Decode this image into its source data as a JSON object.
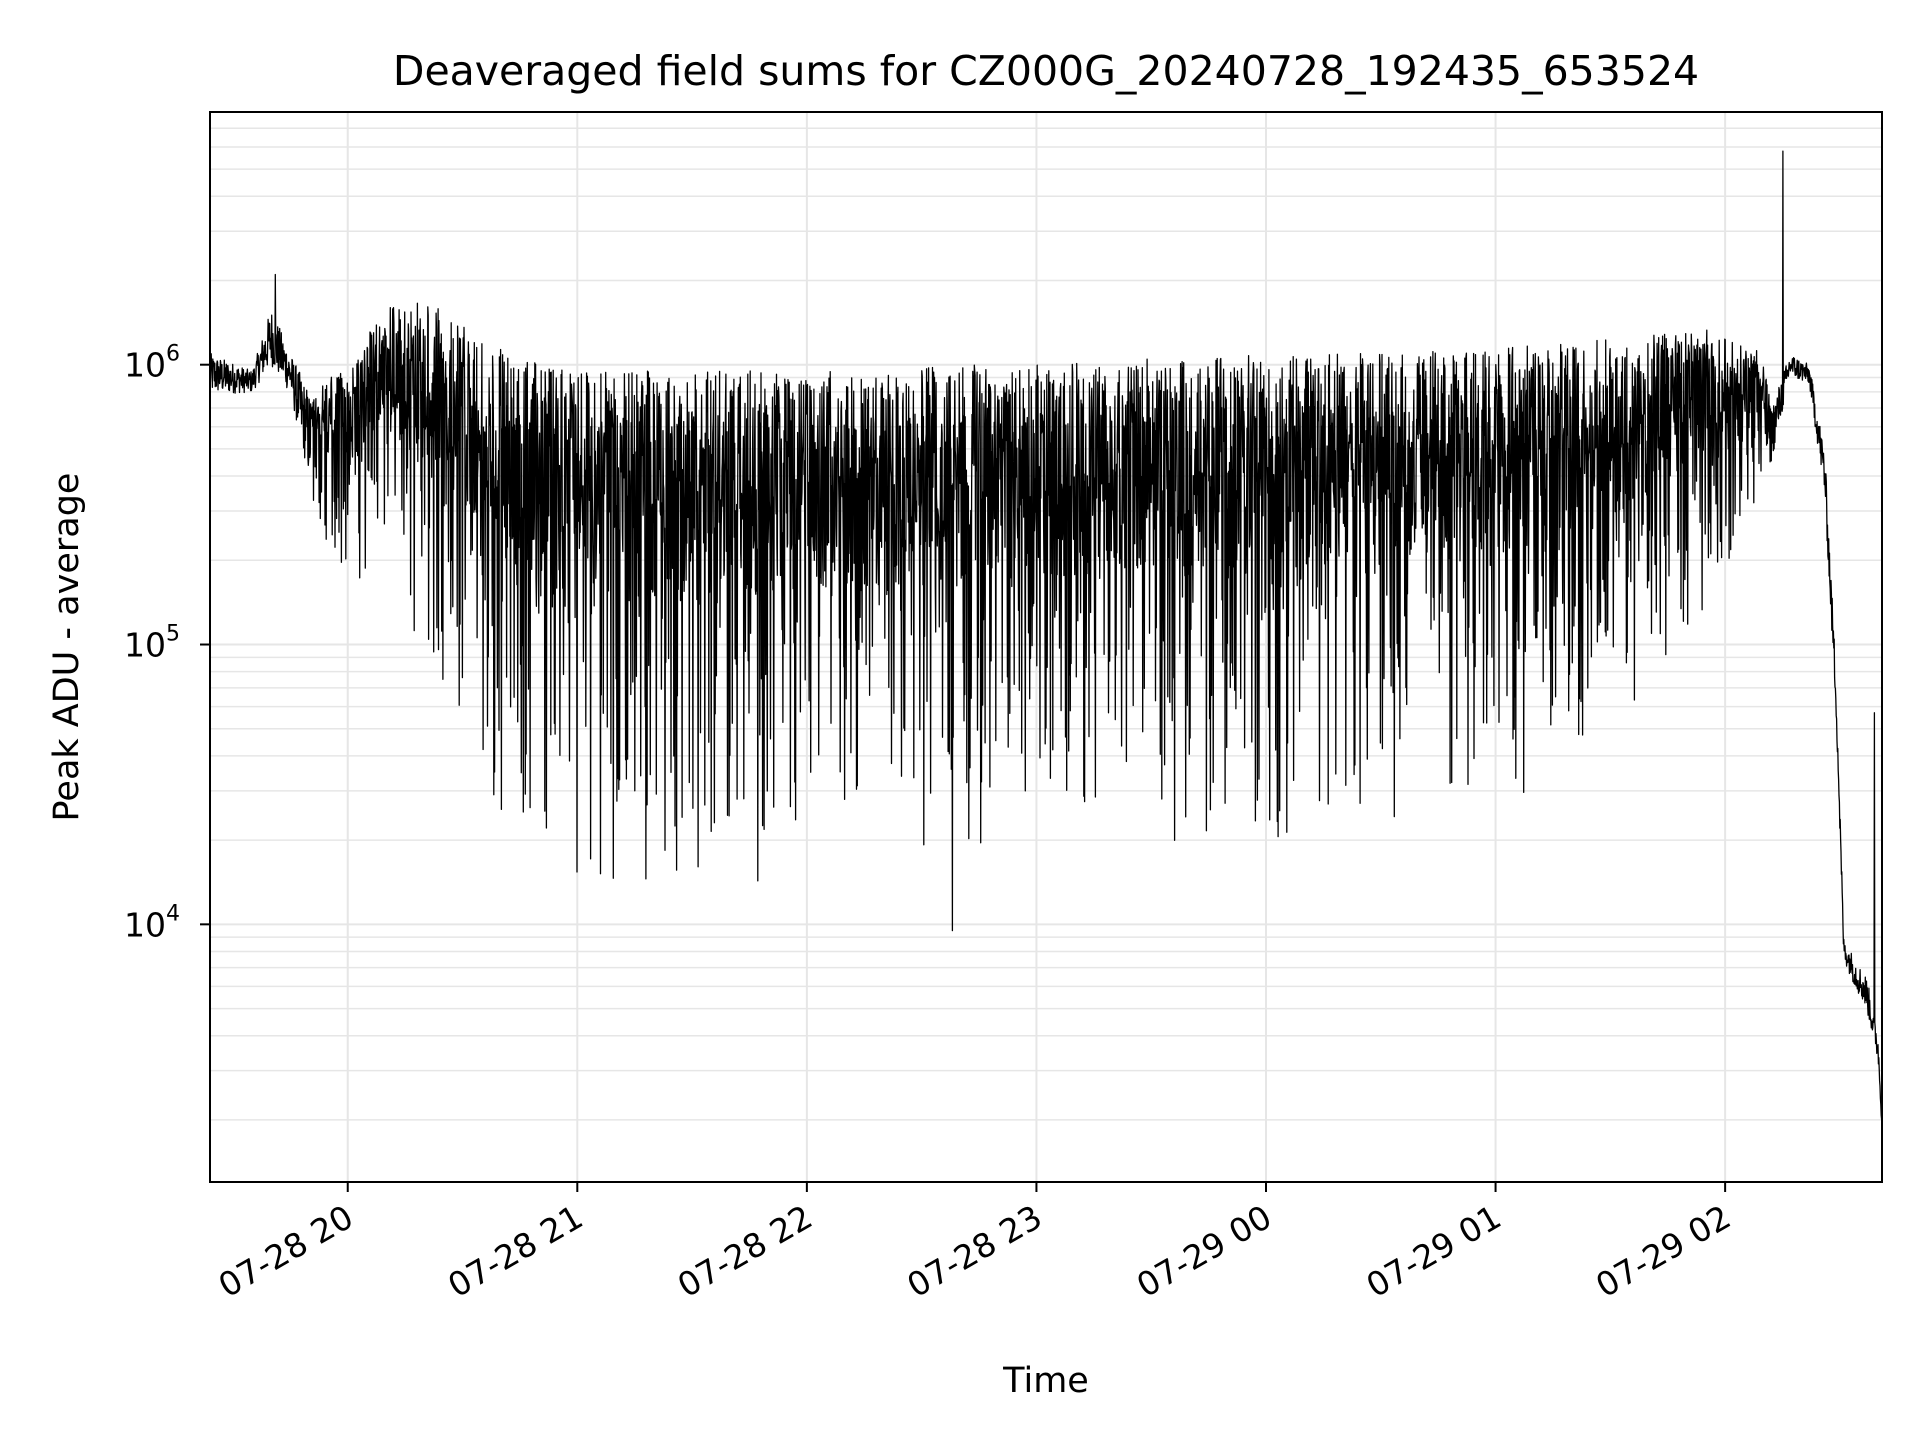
{
  "chart_data": {
    "type": "line",
    "title": "Deaveraged field sums for CZ000G_20240728_192435_653524",
    "xlabel": "Time",
    "ylabel": "Peak ADU - average",
    "xlim": [
      "2024-07-28 19:24",
      "2024-07-29 02:41"
    ],
    "ylim": [
      1200,
      8000000
    ],
    "yscale": "log",
    "grid": true,
    "line_color": "#000000",
    "x_ticks": [
      {
        "t": "2024-07-28 20:00",
        "label": "07-28 20"
      },
      {
        "t": "2024-07-28 21:00",
        "label": "07-28 21"
      },
      {
        "t": "2024-07-28 22:00",
        "label": "07-28 22"
      },
      {
        "t": "2024-07-28 23:00",
        "label": "07-28 23"
      },
      {
        "t": "2024-07-29 00:00",
        "label": "07-29 00"
      },
      {
        "t": "2024-07-29 01:00",
        "label": "07-29 01"
      },
      {
        "t": "2024-07-29 02:00",
        "label": "07-29 02"
      }
    ],
    "y_ticks": [
      {
        "value": 10000,
        "base": "10",
        "exp": "4"
      },
      {
        "value": 100000,
        "base": "10",
        "exp": "5"
      },
      {
        "value": 1000000,
        "base": "10",
        "exp": "6"
      }
    ],
    "envelope": [
      {
        "t": "2024-07-28 19:24",
        "upper": 1100000,
        "lower": 700000
      },
      {
        "t": "2024-07-28 19:35",
        "upper": 950000,
        "lower": 750000
      },
      {
        "t": "2024-07-28 19:40",
        "upper": 1600000,
        "lower": 850000
      },
      {
        "t": "2024-07-28 19:45",
        "upper": 1100000,
        "lower": 700000
      },
      {
        "t": "2024-07-28 19:50",
        "upper": 800000,
        "lower": 300000
      },
      {
        "t": "2024-07-28 20:00",
        "upper": 1000000,
        "lower": 170000
      },
      {
        "t": "2024-07-28 20:10",
        "upper": 1600000,
        "lower": 160000
      },
      {
        "t": "2024-07-28 20:20",
        "upper": 1700000,
        "lower": 80000
      },
      {
        "t": "2024-07-28 20:30",
        "upper": 1400000,
        "lower": 50000
      },
      {
        "t": "2024-07-28 20:40",
        "upper": 1200000,
        "lower": 25000
      },
      {
        "t": "2024-07-28 20:50",
        "upper": 1000000,
        "lower": 17000
      },
      {
        "t": "2024-07-28 21:00",
        "upper": 950000,
        "lower": 15000
      },
      {
        "t": "2024-07-28 21:20",
        "upper": 950000,
        "lower": 13000
      },
      {
        "t": "2024-07-28 21:40",
        "upper": 950000,
        "lower": 13000
      },
      {
        "t": "2024-07-28 22:00",
        "upper": 950000,
        "lower": 15000
      },
      {
        "t": "2024-07-28 22:20",
        "upper": 950000,
        "lower": 16000
      },
      {
        "t": "2024-07-28 22:40",
        "upper": 1000000,
        "lower": 16000
      },
      {
        "t": "2024-07-28 23:00",
        "upper": 1000000,
        "lower": 19000
      },
      {
        "t": "2024-07-28 23:30",
        "upper": 1050000,
        "lower": 19000
      },
      {
        "t": "2024-07-29 00:00",
        "upper": 1100000,
        "lower": 20000
      },
      {
        "t": "2024-07-29 00:30",
        "upper": 1100000,
        "lower": 23000
      },
      {
        "t": "2024-07-29 01:00",
        "upper": 1150000,
        "lower": 26000
      },
      {
        "t": "2024-07-29 01:20",
        "upper": 1200000,
        "lower": 33000
      },
      {
        "t": "2024-07-29 01:40",
        "upper": 1300000,
        "lower": 70000
      },
      {
        "t": "2024-07-29 01:55",
        "upper": 1350000,
        "lower": 130000
      },
      {
        "t": "2024-07-29 02:10",
        "upper": 1100000,
        "lower": 300000
      },
      {
        "t": "2024-07-29 02:12",
        "upper": 700000,
        "lower": 380000
      },
      {
        "t": "2024-07-29 02:17",
        "upper": 1100000,
        "lower": 850000
      },
      {
        "t": "2024-07-29 02:22",
        "upper": 1000000,
        "lower": 800000
      },
      {
        "t": "2024-07-29 02:26",
        "upper": 500000,
        "lower": 300000
      },
      {
        "t": "2024-07-29 02:29",
        "upper": 80000,
        "lower": 50000
      },
      {
        "t": "2024-07-29 02:31",
        "upper": 9000,
        "lower": 7000
      },
      {
        "t": "2024-07-29 02:34",
        "upper": 7500,
        "lower": 5500
      },
      {
        "t": "2024-07-29 02:37",
        "upper": 6500,
        "lower": 4500
      },
      {
        "t": "2024-07-29 02:40",
        "upper": 4000,
        "lower": 3000
      },
      {
        "t": "2024-07-29 02:41",
        "upper": 2000,
        "lower": 1800
      }
    ],
    "spikes": [
      {
        "t": "2024-07-28 19:41",
        "value": 2100000
      },
      {
        "t": "2024-07-28 22:38",
        "value": 9500
      },
      {
        "t": "2024-07-29 02:15",
        "value": 5800000
      },
      {
        "t": "2024-07-29 02:39",
        "value": 57000
      }
    ]
  }
}
